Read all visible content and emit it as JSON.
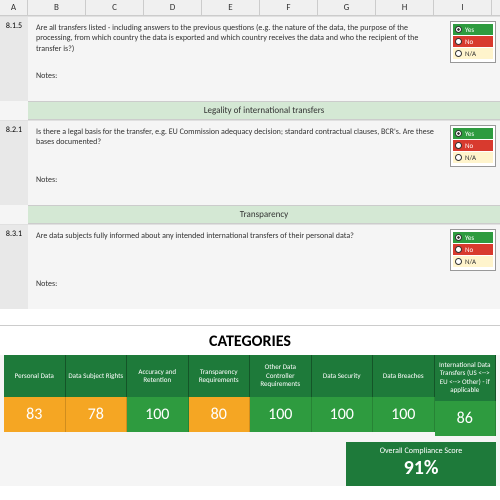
{
  "columns": [
    "A",
    "B",
    "C",
    "D",
    "E",
    "F",
    "G",
    "H",
    "I"
  ],
  "sections": [
    {
      "num": "8.1.5",
      "text": "Are all transfers listed - including answers to the previous questions (e.g. the nature of the data, the purpose of the processing, from which country the data is exported and which country receives the data and who the recipient of the transfer is?)",
      "notes_label": "Notes:",
      "opts": {
        "yes": "Yes",
        "no": "No",
        "na": "N/A",
        "sel": "yes"
      }
    }
  ],
  "header1": "Legality of international transfers",
  "q2": {
    "num": "8.2.1",
    "text": "Is there a legal basis for the transfer, e.g. EU Commission adequacy decision; standard contractual clauses, BCR's. Are these bases documented?",
    "notes_label": "Notes:",
    "opts": {
      "yes": "Yes",
      "no": "No",
      "na": "N/A",
      "sel": "yes"
    }
  },
  "header2": "Transparency",
  "q3": {
    "num": "8.3.1",
    "text": "Are data subjects fully informed about any intended international transfers of their personal data?",
    "notes_label": "Notes:",
    "opts": {
      "yes": "Yes",
      "no": "No",
      "na": "N/A",
      "sel": "yes"
    }
  },
  "categories_title": "CATEGORIES",
  "cats": [
    {
      "label": "Personal Data",
      "score": "83",
      "cls": "sc-amber"
    },
    {
      "label": "Data Subject Rights",
      "score": "78",
      "cls": "sc-amber"
    },
    {
      "label": "Accuracy and Retention",
      "score": "100",
      "cls": "sc-green"
    },
    {
      "label": "Transparency Requirements",
      "score": "80",
      "cls": "sc-amber"
    },
    {
      "label": "Other Data Controller Requirements",
      "score": "100",
      "cls": "sc-green"
    },
    {
      "label": "Data Security",
      "score": "100",
      "cls": "sc-green"
    },
    {
      "label": "Data Breaches",
      "score": "100",
      "cls": "sc-green"
    },
    {
      "label": "International Data Transfers (US <--> EU <--> Other) - if applicable",
      "score": "86",
      "cls": "sc-green"
    }
  ],
  "overall_label": "Overall Compliance Score",
  "overall_score": "91%",
  "colors": {
    "green_dark": "#1e7a3a",
    "green": "#2e9b3f",
    "amber": "#f5a623",
    "red": "#d83a2e",
    "header_bg": "#d4e8d4"
  }
}
